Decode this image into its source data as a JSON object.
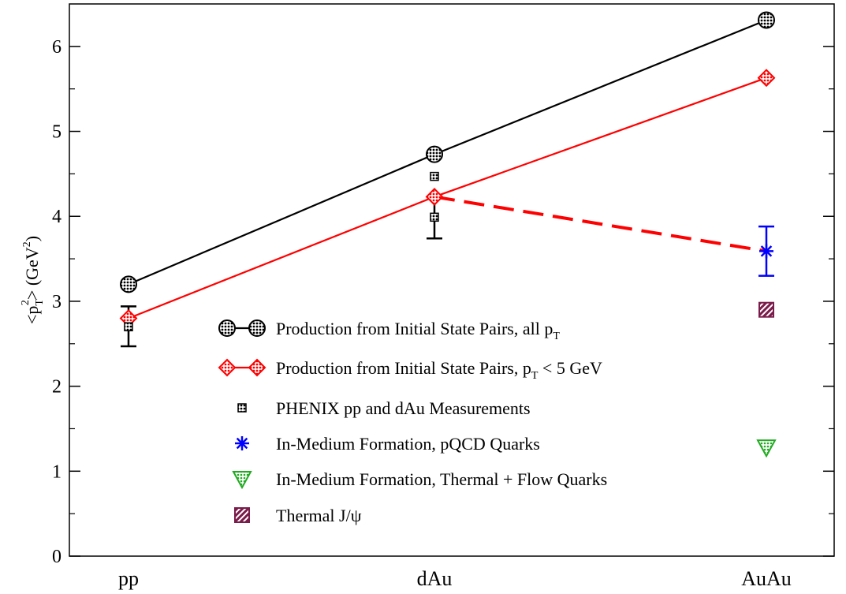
{
  "chart_data": {
    "type": "line",
    "categories": [
      "pp",
      "dAu",
      "AuAu"
    ],
    "ylabel": "<p_T^2> (GeV^2)",
    "ylabel_parts": {
      "open": "<p",
      "sub": "T",
      "sup": "2",
      "close": "> (GeV",
      "sup2": "2",
      "end": ")"
    },
    "ylim": [
      0,
      6.5
    ],
    "yticks": [
      "0",
      "1",
      "2",
      "3",
      "4",
      "5",
      "6"
    ],
    "series": [
      {
        "name": "Production from Initial State Pairs, all p_T",
        "name_parts": {
          "main": "Production from Initial State Pairs, all p",
          "sub": "T",
          "tail": ""
        },
        "marker": "hatched-circle",
        "color": "#000000",
        "values": [
          3.2,
          4.73,
          6.31
        ]
      },
      {
        "name": "Production from Initial State Pairs, p_T < 5 GeV",
        "name_parts": {
          "main": "Production from Initial State Pairs, p",
          "sub": "T",
          "tail": " < 5 GeV"
        },
        "marker": "diamond",
        "color": "#ff0000",
        "values": [
          2.8,
          4.23,
          5.63
        ]
      },
      {
        "name": "PHENIX pp and dAu Measurements",
        "marker": "small-square",
        "color": "#000000",
        "points": [
          {
            "x": "pp",
            "y": 2.7,
            "yerr_low": 2.47,
            "yerr_high": 2.94
          },
          {
            "x": "dAu",
            "y": 4.47,
            "yerr_low": null,
            "yerr_high": null
          },
          {
            "x": "dAu",
            "y": 3.99,
            "yerr_low": 3.74,
            "yerr_high": 4.23
          }
        ]
      },
      {
        "name": "In-Medium Formation, pQCD Quarks",
        "marker": "star",
        "color": "#0000ff",
        "points": [
          {
            "x": "AuAu",
            "y": 3.59,
            "yerr_low": 3.3,
            "yerr_high": 3.88
          }
        ]
      },
      {
        "name": "In-Medium Formation, Thermal + Flow Quarks",
        "marker": "triangle-down",
        "color": "#22aa22",
        "points": [
          {
            "x": "AuAu",
            "y": 1.28
          }
        ]
      },
      {
        "name": "Thermal J/ψ",
        "marker": "hatched-square",
        "color": "#7a1c4a",
        "points": [
          {
            "x": "AuAu",
            "y": 2.9
          }
        ]
      }
    ],
    "dashed_line": {
      "color": "#ff0000",
      "from": {
        "x": "dAu",
        "y": 4.23
      },
      "to": {
        "x": "AuAu",
        "y": 3.59
      }
    },
    "grid": false,
    "legend_position": "lower-center"
  }
}
